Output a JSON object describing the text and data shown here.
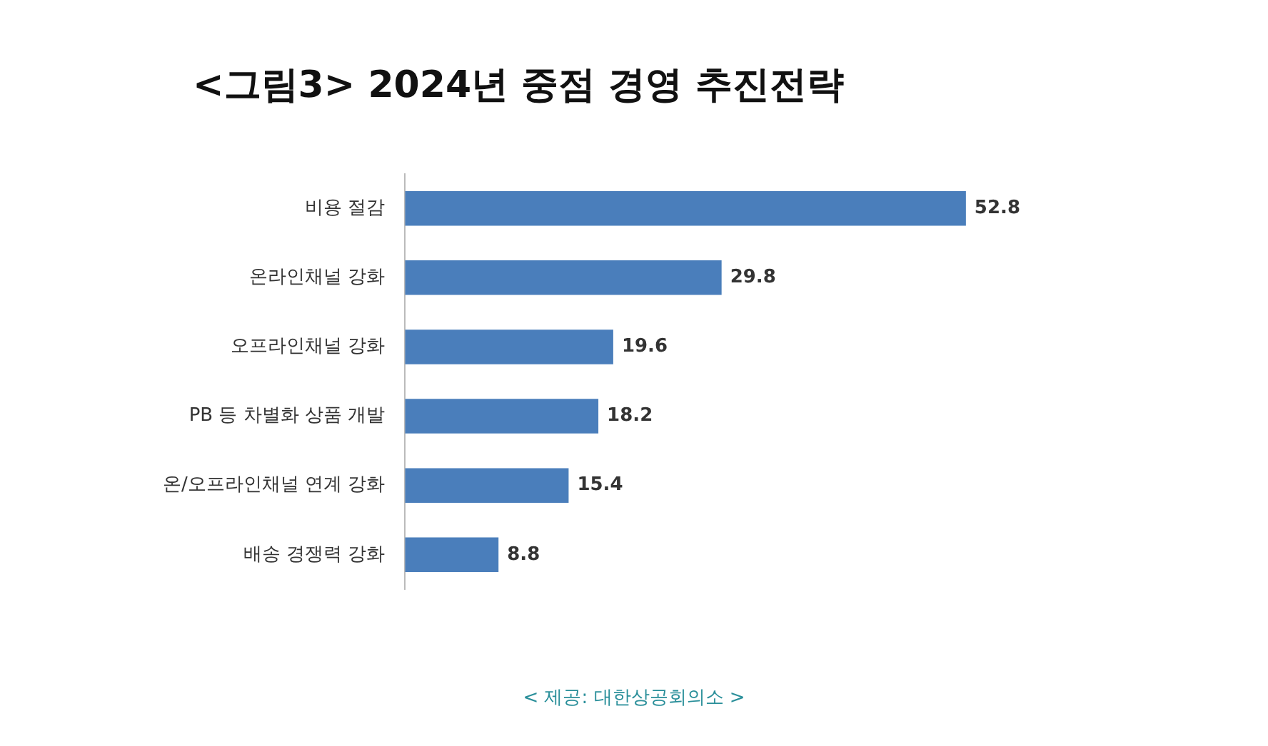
{
  "chart_data": {
    "type": "bar",
    "orientation": "horizontal",
    "title": "<그림3> 2024년 중점 경영 추진전략",
    "categories": [
      "비용 절감",
      "온라인채널 강화",
      "오프라인채널 강화",
      "PB 등 차별화 상품 개발",
      "온/오프라인채널 연계 강화",
      "배송 경쟁력 강화"
    ],
    "values": [
      52.8,
      29.8,
      19.6,
      18.2,
      15.4,
      8.8
    ],
    "color": "#4a7ebb",
    "data_labels": true,
    "annotations": [
      "< 제공: 대한상공회의소 >"
    ]
  }
}
